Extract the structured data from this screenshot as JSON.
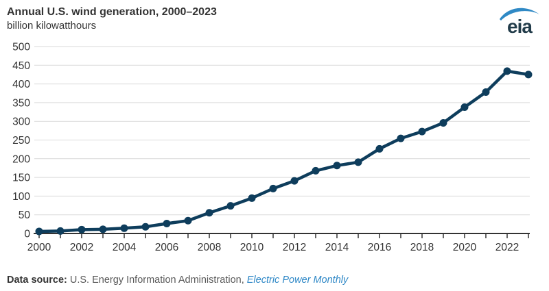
{
  "header": {
    "title": "Annual U.S. wind generation, 2000–2023",
    "subtitle": "billion kilowatthours",
    "logo_text": "eia"
  },
  "chart_data": {
    "type": "line",
    "title": "Annual U.S. wind generation, 2000–2023",
    "ylabel": "billion kilowatthours",
    "xlabel": "",
    "x": [
      2000,
      2001,
      2002,
      2003,
      2004,
      2005,
      2006,
      2007,
      2008,
      2009,
      2010,
      2011,
      2012,
      2013,
      2014,
      2015,
      2016,
      2017,
      2018,
      2019,
      2020,
      2021,
      2022,
      2023
    ],
    "values": [
      5.6,
      6.7,
      10.4,
      11.2,
      14.1,
      17.8,
      26.6,
      34.4,
      55.4,
      73.9,
      94.6,
      120.2,
      140.8,
      167.8,
      181.7,
      190.7,
      226.5,
      254.3,
      272.7,
      295.9,
      337.9,
      378.2,
      434.3,
      425.2
    ],
    "ylim": [
      0,
      500
    ],
    "yticks": [
      0,
      50,
      100,
      150,
      200,
      250,
      300,
      350,
      400,
      450,
      500
    ],
    "xtick_labels": [
      "2000",
      "2002",
      "2004",
      "2006",
      "2008",
      "2010",
      "2012",
      "2014",
      "2016",
      "2018",
      "2020",
      "2022"
    ],
    "grid": "horizontal",
    "legend": "none",
    "marker": "circle"
  },
  "footer": {
    "label": "Data source:",
    "text": " U.S. Energy Information Administration, ",
    "link": "Electric Power Monthly"
  },
  "colors": {
    "line": "#0e3d5c",
    "marker": "#0e3d5c",
    "grid": "#d9d9d9",
    "axis": "#333333",
    "tick_label": "#333333",
    "title_text": "#333333",
    "footer_text": "#595959",
    "link": "#2d87c6",
    "logo_text": "#223c4a",
    "logo_swoosh": "#2f89c5"
  }
}
